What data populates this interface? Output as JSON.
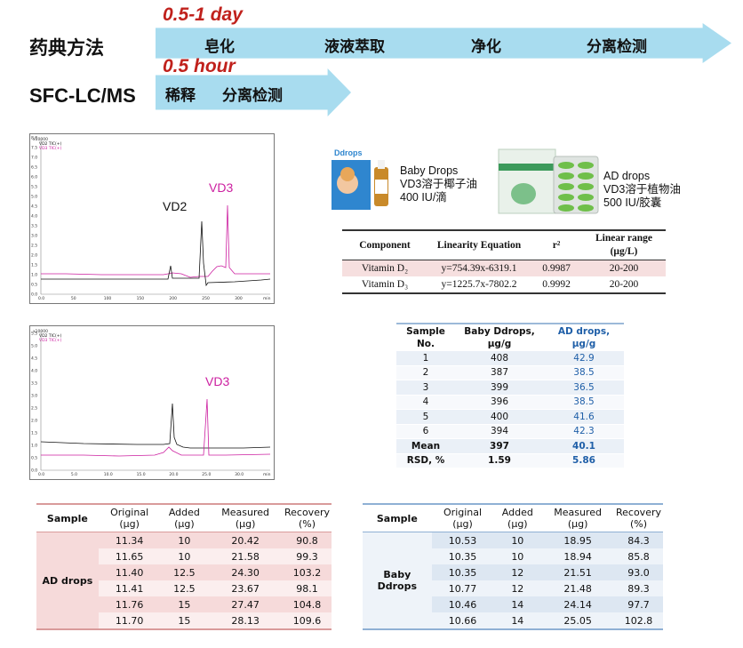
{
  "workflow": {
    "row1": {
      "method": "药典方法",
      "time": "0.5-1 day",
      "steps": [
        "皂化",
        "液液萃取",
        "净化",
        "分离检测"
      ]
    },
    "row2": {
      "method": "SFC-LC/MS",
      "time": "0.5 hour",
      "steps": [
        "稀释",
        "分离检测"
      ]
    },
    "arrow_color": "#a8dcef",
    "time_color": "#c0211c"
  },
  "chromatograms": [
    {
      "legend": [
        "VD2 TIC(+)",
        "VD3 TIC(+)"
      ],
      "peak_labels": [
        {
          "text": "VD2",
          "color": "#111111"
        },
        {
          "text": "VD3",
          "color": "#cc1fa0"
        }
      ],
      "yticks": [
        "8.0",
        "7.5",
        "7.0",
        "6.5",
        "6.0",
        "5.5",
        "5.0",
        "4.5",
        "4.0",
        "3.5",
        "3.0",
        "2.5",
        "2.0",
        "1.5",
        "1.0",
        "0.5",
        "0.0"
      ],
      "xticks": [
        "0.0",
        "50",
        "100",
        "150",
        "200",
        "250",
        "300",
        "min"
      ]
    },
    {
      "legend": [
        "VD2 TIC(+)",
        "VD3 TIC(+)"
      ],
      "peak_labels": [
        {
          "text": "VD3",
          "color": "#cc1fa0"
        }
      ],
      "yticks": [
        "5.5",
        "5.0",
        "4.5",
        "4.0",
        "3.5",
        "3.0",
        "2.5",
        "2.0",
        "1.5",
        "1.0",
        "0.5",
        "0.0"
      ],
      "xticks": [
        "0.0",
        "5.0",
        "10.0",
        "15.0",
        "20.0",
        "25.0",
        "30.0",
        "min"
      ]
    }
  ],
  "products": [
    {
      "lines": [
        "Baby Drops",
        "VD3溶于椰子油",
        "400 IU/滴"
      ],
      "pack_text": "Ddrops"
    },
    {
      "lines": [
        "AD drops",
        "VD3溶于植物油",
        "500 IU/胶囊"
      ]
    }
  ],
  "linearity": {
    "headers": [
      "Component",
      "Linearity Equation",
      "r²",
      "Linear range (μg/L)"
    ],
    "rows": [
      [
        "Vitamin D₂",
        "y=754.39x-6319.1",
        "0.9987",
        "20-200"
      ],
      [
        "Vitamin D₃",
        "y=1225.7x-7802.2",
        "0.9992",
        "20-200"
      ]
    ]
  },
  "samples": {
    "headers": [
      "Sample No.",
      "Baby Ddrops, μg/g",
      "AD drops, μg/g"
    ],
    "rows": [
      [
        "1",
        "408",
        "42.9"
      ],
      [
        "2",
        "387",
        "38.5"
      ],
      [
        "3",
        "399",
        "36.5"
      ],
      [
        "4",
        "396",
        "38.5"
      ],
      [
        "5",
        "400",
        "41.6"
      ],
      [
        "6",
        "394",
        "42.3"
      ],
      [
        "Mean",
        "397",
        "40.1"
      ],
      [
        "RSD, %",
        "1.59",
        "5.86"
      ]
    ]
  },
  "recovery_ad": {
    "headers": [
      "Sample",
      "Original (μg)",
      "Added (μg)",
      "Measured (μg)",
      "Recovery (%)"
    ],
    "sample": "AD drops",
    "rows": [
      [
        "11.34",
        "10",
        "20.42",
        "90.8"
      ],
      [
        "11.65",
        "10",
        "21.58",
        "99.3"
      ],
      [
        "11.40",
        "12.5",
        "24.30",
        "103.2"
      ],
      [
        "11.41",
        "12.5",
        "23.67",
        "98.1"
      ],
      [
        "11.76",
        "15",
        "27.47",
        "104.8"
      ],
      [
        "11.70",
        "15",
        "28.13",
        "109.6"
      ]
    ]
  },
  "recovery_baby": {
    "headers": [
      "Sample",
      "Original (μg)",
      "Added (μg)",
      "Measured (μg)",
      "Recovery (%)"
    ],
    "sample": "Baby Ddrops",
    "rows": [
      [
        "10.53",
        "10",
        "18.95",
        "84.3"
      ],
      [
        "10.35",
        "10",
        "18.94",
        "85.8"
      ],
      [
        "10.35",
        "12",
        "21.51",
        "93.0"
      ],
      [
        "10.77",
        "12",
        "21.48",
        "89.3"
      ],
      [
        "10.46",
        "14",
        "24.14",
        "97.7"
      ],
      [
        "10.66",
        "14",
        "25.05",
        "102.8"
      ]
    ]
  }
}
